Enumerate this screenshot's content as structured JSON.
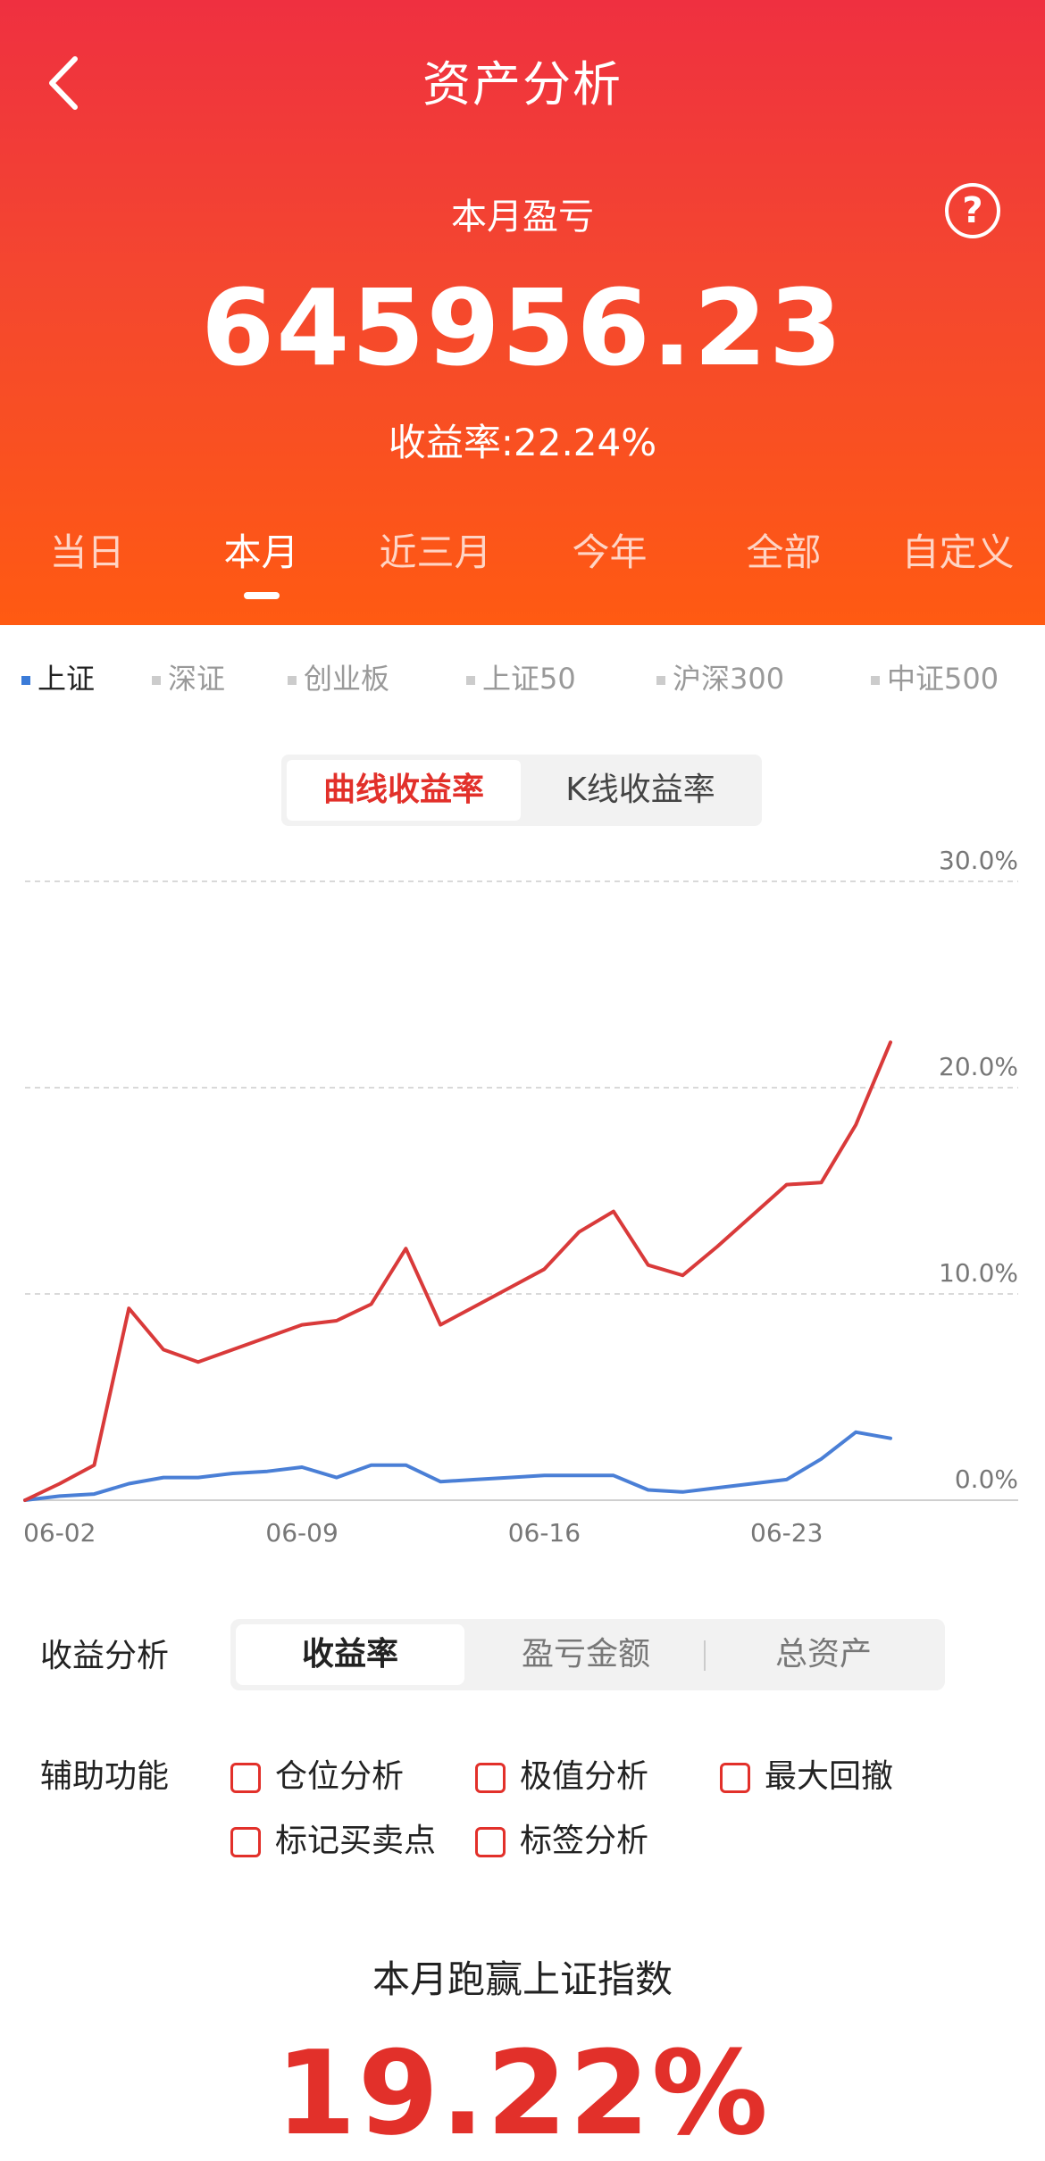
{
  "header": {
    "title": "资产分析",
    "pnl_label": "本月盈亏",
    "pnl_value": "645956.23",
    "return_rate": "收益率:22.24%",
    "help_symbol": "?",
    "back_icon": "chevron-left-icon",
    "help_icon": "question-circle-icon"
  },
  "period_tabs": [
    "当日",
    "本月",
    "近三月",
    "今年",
    "全部",
    "自定义"
  ],
  "active_period": "本月",
  "index_tabs": [
    "上证",
    "深证",
    "创业板",
    "上证50",
    "沪深300",
    "中证500"
  ],
  "active_index": "上证",
  "chart_mode": {
    "options": [
      "曲线收益率",
      "K线收益率"
    ],
    "active": "曲线收益率"
  },
  "chart_data": {
    "type": "line",
    "x": [
      "06-01",
      "06-02",
      "06-03",
      "06-04",
      "06-05",
      "06-06",
      "06-07",
      "06-08",
      "06-09",
      "06-10",
      "06-11",
      "06-12",
      "06-13",
      "06-14",
      "06-15",
      "06-16",
      "06-17",
      "06-18",
      "06-19",
      "06-20",
      "06-21",
      "06-22",
      "06-23",
      "06-24",
      "06-25",
      "06-26"
    ],
    "x_tick_labels": [
      "06-02",
      "06-09",
      "06-16",
      "06-23"
    ],
    "y_tick_labels": [
      "0.0%",
      "10.0%",
      "20.0%",
      "30.0%"
    ],
    "ylim": [
      0,
      30
    ],
    "series": [
      {
        "color": "#d93a3a",
        "values": [
          0.0,
          0.8,
          1.7,
          9.3,
          7.3,
          6.7,
          7.3,
          7.9,
          8.5,
          8.7,
          9.5,
          12.2,
          8.5,
          9.4,
          10.3,
          11.2,
          13.0,
          14.0,
          11.4,
          10.9,
          12.3,
          13.8,
          15.3,
          15.4,
          18.2,
          22.2
        ]
      },
      {
        "color": "#4a7fd6",
        "values": [
          0.0,
          0.2,
          0.3,
          0.8,
          1.1,
          1.1,
          1.3,
          1.4,
          1.6,
          1.1,
          1.7,
          1.7,
          0.9,
          1.0,
          1.1,
          1.2,
          1.2,
          1.2,
          0.5,
          0.4,
          0.6,
          0.8,
          1.0,
          2.0,
          3.3,
          3.0
        ]
      }
    ],
    "grid": true
  },
  "analysis": {
    "label": "收益分析",
    "options": [
      "收益率",
      "盈亏金额",
      "总资产"
    ],
    "active": "收益率"
  },
  "aux": {
    "label": "辅助功能",
    "items": [
      "仓位分析",
      "极值分析",
      "最大回撤",
      "标记买卖点",
      "标签分析"
    ]
  },
  "beat": {
    "title": "本月跑赢上证指数",
    "value": "19.22%"
  },
  "colors": {
    "accent_red": "#e2302a",
    "header_top": "#ef3040",
    "header_bottom": "#ff5a12",
    "index_blue": "#3b7bd8"
  }
}
